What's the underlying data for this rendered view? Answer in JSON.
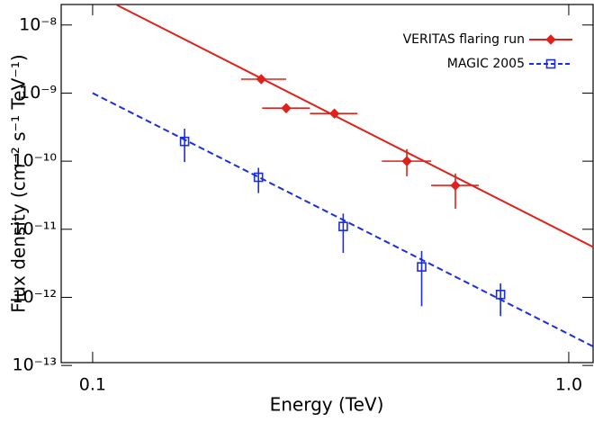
{
  "chart_data": {
    "type": "scatter",
    "x_label": "Energy (TeV)",
    "y_label": "Flux density (cm⁻² s⁻¹ TeV⁻¹)",
    "log_x": true,
    "log_y": true,
    "xlim": [
      0.0859,
      1.125
    ],
    "ylim": [
      1.1e-13,
      2e-08
    ],
    "xticks": [
      0.1,
      {
        "value": 1,
        "label": "1.0"
      }
    ],
    "yticks": [
      {
        "value": 1e-08,
        "label": "10⁻⁸"
      },
      {
        "value": 1e-09,
        "label": "10⁻⁹"
      },
      {
        "value": 1e-10,
        "label": "10⁻¹⁰"
      },
      {
        "value": 1e-11,
        "label": "10⁻¹¹"
      },
      {
        "value": 1e-12,
        "label": "10⁻¹²"
      },
      {
        "value": 1e-13,
        "label": "10⁻¹³"
      }
    ],
    "legend": "upper right",
    "series": [
      {
        "name": "VERITAS flaring run",
        "color": "#e0201b",
        "marker": "diamond",
        "line_style": "solid",
        "x": [
          0.226,
          0.255,
          0.322,
          0.457,
          0.578
        ],
        "values": [
          1.6e-09,
          6e-10,
          5e-10,
          1e-10,
          4.4e-11
        ],
        "x_low": [
          0.205,
          0.227,
          0.286,
          0.405,
          0.514
        ],
        "x_high": [
          0.255,
          0.286,
          0.36,
          0.514,
          0.647
        ],
        "y_low": [
          1.45e-09,
          5.2e-10,
          4.4e-10,
          6e-11,
          2e-11
        ],
        "y_high": [
          1.8e-09,
          7e-10,
          5.7e-10,
          1.5e-10,
          6.6e-11
        ],
        "fit_x": [
          0.1125,
          1.125
        ],
        "fit_values": [
          1.96e-08,
          5.5e-12
        ]
      },
      {
        "name": "MAGIC 2005",
        "color": "#1a2de0",
        "marker": "square",
        "line_style": "dashed",
        "x": [
          0.156,
          0.223,
          0.336,
          0.491,
          0.719
        ],
        "values": [
          1.95e-10,
          5.8e-11,
          1.1e-11,
          2.8e-12,
          1.1e-12
        ],
        "x_low": [
          0.156,
          0.223,
          0.336,
          0.491,
          0.719
        ],
        "x_high": [
          0.156,
          0.223,
          0.336,
          0.491,
          0.719
        ],
        "y_low": [
          9.7e-11,
          3.4e-11,
          4.5e-12,
          7.4e-13,
          5.3e-13
        ],
        "y_high": [
          3e-10,
          8e-11,
          1.7e-11,
          4.8e-12,
          1.6e-12
        ],
        "fit_x": [
          0.1,
          1.125
        ],
        "fit_values": [
          1e-09,
          1.9e-13
        ]
      }
    ]
  }
}
